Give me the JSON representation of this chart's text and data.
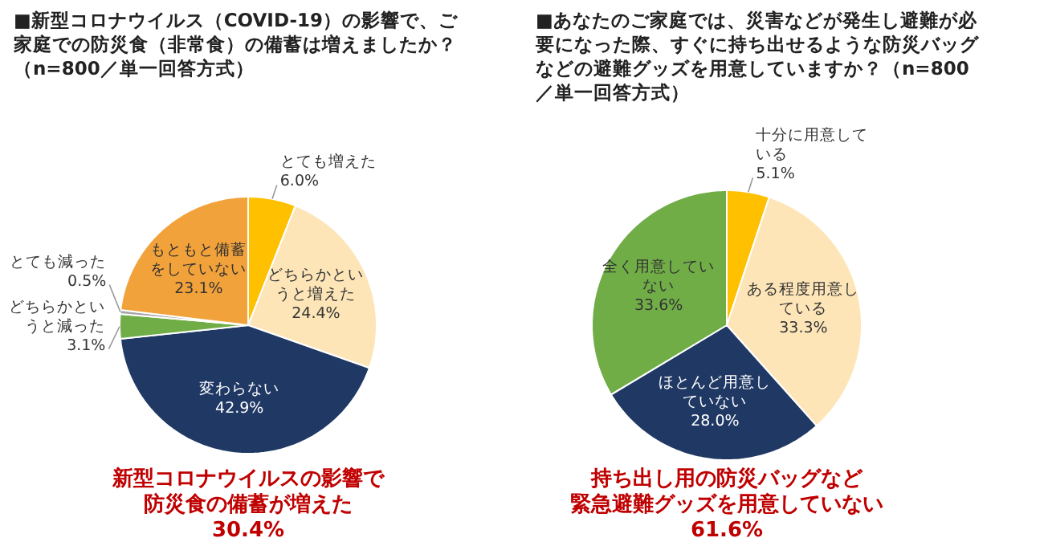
{
  "chart_data": [
    {
      "type": "pie",
      "title": "■新型コロナウイルス（COVID-19）の影響で、ご家庭での防災食（非常食）の備蓄は増えましたか？（n=800／単一回答方式）",
      "categories": [
        "とても増えた",
        "どちらかというと増えた",
        "変わらない",
        "どちらかというと減った",
        "とても減った",
        "もともと備蓄をしていない"
      ],
      "values": [
        6.0,
        24.4,
        42.9,
        3.1,
        0.5,
        23.1
      ],
      "colors": [
        "#ffc000",
        "#fde5b8",
        "#203864",
        "#70ad47",
        "#a5a5a5",
        "#f2a23a"
      ],
      "value_labels": [
        "6.0%",
        "24.4%",
        "42.9%",
        "3.1%",
        "0.5%",
        "23.1%"
      ],
      "annotations": [
        "新型コロナウイルスの影響で",
        "防災食の備蓄が増えた",
        "30.4%"
      ]
    },
    {
      "type": "pie",
      "title": "■あなたのご家庭では、災害などが発生し避難が必要になった際、すぐに持ち出せるような防災バッグなどの避難グッズを用意していますか？（n=800／単一回答方式）",
      "categories": [
        "十分に用意している",
        "ある程度用意している",
        "ほとんど用意していない",
        "全く用意していない"
      ],
      "values": [
        5.1,
        33.3,
        28.0,
        33.6
      ],
      "colors": [
        "#ffc000",
        "#fde5b8",
        "#203864",
        "#70ad47"
      ],
      "value_labels": [
        "5.1%",
        "33.3%",
        "28.0%",
        "33.6%"
      ],
      "annotations": [
        "持ち出し用の防災バッグなど",
        "緊急避難グッズを用意していない",
        "61.6%"
      ]
    }
  ]
}
